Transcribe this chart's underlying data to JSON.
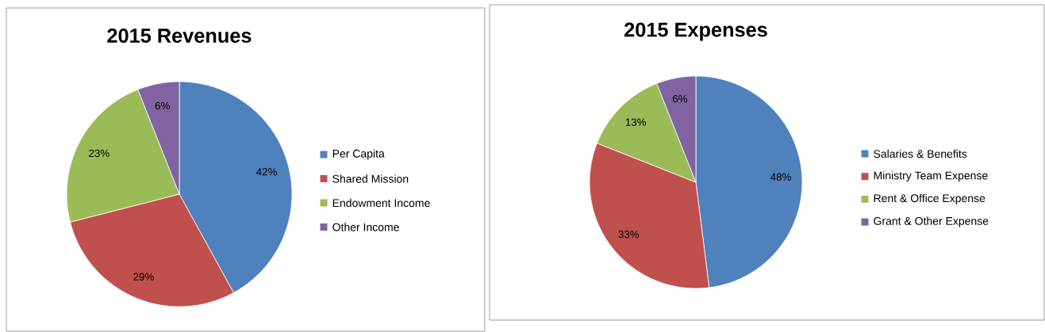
{
  "chart_data": [
    {
      "type": "pie",
      "title": "2015 Revenues",
      "categories": [
        "Per Capita",
        "Shared Mission",
        "Endowment Income",
        "Other Income"
      ],
      "values": [
        42,
        29,
        23,
        6
      ],
      "value_labels": [
        "42%",
        "29%",
        "23%",
        "6%"
      ],
      "colors": [
        "#4f81bd",
        "#c0504d",
        "#9bbb59",
        "#8064a2"
      ],
      "legend": "right"
    },
    {
      "type": "pie",
      "title": "2015 Expenses",
      "categories": [
        "Salaries & Benefits",
        "Ministry Team Expense",
        "Rent & Office Expense",
        "Grant & Other Expense"
      ],
      "values": [
        48,
        33,
        13,
        6
      ],
      "value_labels": [
        "48%",
        "33%",
        "13%",
        "6%"
      ],
      "colors": [
        "#4f81bd",
        "#c0504d",
        "#9bbb59",
        "#8064a2"
      ],
      "legend": "right"
    }
  ]
}
